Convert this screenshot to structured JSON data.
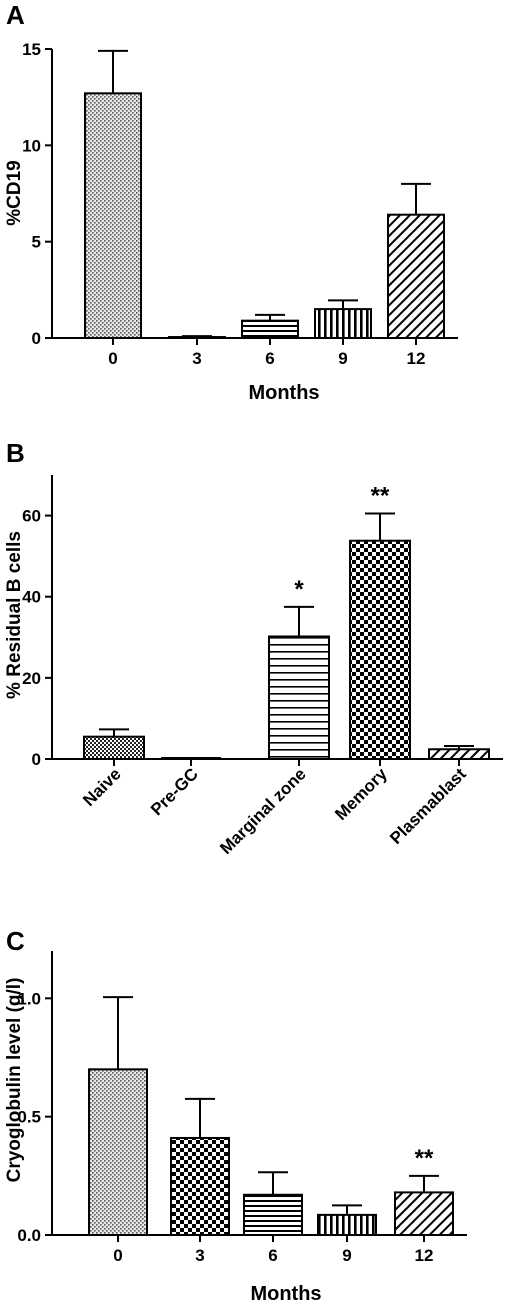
{
  "chart_data": [
    {
      "panel": "A",
      "type": "bar",
      "categories": [
        "0",
        "3",
        "6",
        "9",
        "12"
      ],
      "values": [
        12.7,
        0.05,
        0.9,
        1.5,
        6.4
      ],
      "errors": [
        2.2,
        0.05,
        0.3,
        0.45,
        1.6
      ],
      "significance": [
        "",
        "",
        "",
        "",
        ""
      ],
      "patterns": [
        "dots",
        "hstripes-fine",
        "hstripes",
        "vstripes",
        "diagonal"
      ],
      "xlabel": "Months",
      "ylabel": "%CD19",
      "ylim": [
        0,
        15
      ],
      "yticks": [
        "0",
        "5",
        "10",
        "15"
      ],
      "ytick_values": [
        0,
        5,
        10,
        15
      ]
    },
    {
      "panel": "B",
      "type": "bar",
      "categories": [
        "Naive",
        "Pre-GC",
        "Marginal zone",
        "Memory",
        "Plasmablast"
      ],
      "values": [
        5.5,
        0,
        30.2,
        53.8,
        2.4
      ],
      "errors": [
        1.8,
        0,
        7.3,
        6.7,
        0.8
      ],
      "significance": [
        "",
        "",
        "*",
        "**",
        ""
      ],
      "patterns": [
        "smallcheck",
        "none",
        "hstripes-wide",
        "checker",
        "diagonal"
      ],
      "xlabel": "",
      "ylabel": "% Residual B cells",
      "ylim": [
        0,
        70
      ],
      "yticks": [
        "0",
        "20",
        "40",
        "60"
      ],
      "ytick_values": [
        0,
        20,
        40,
        60
      ]
    },
    {
      "panel": "C",
      "type": "bar",
      "categories": [
        "0",
        "3",
        "6",
        "9",
        "12"
      ],
      "values": [
        0.7,
        0.41,
        0.17,
        0.085,
        0.18
      ],
      "errors": [
        0.305,
        0.165,
        0.095,
        0.04,
        0.07
      ],
      "significance": [
        "",
        "",
        "",
        "",
        "**"
      ],
      "patterns": [
        "dots",
        "checker",
        "hstripes",
        "vstripes",
        "diagonal"
      ],
      "xlabel": "Months",
      "ylabel": "Cryoglobulin level (g/l)",
      "ylim": [
        0,
        1.2
      ],
      "yticks": [
        "0.0",
        "0.5",
        "1.0"
      ],
      "ytick_values": [
        0,
        0.5,
        1.0
      ]
    }
  ]
}
